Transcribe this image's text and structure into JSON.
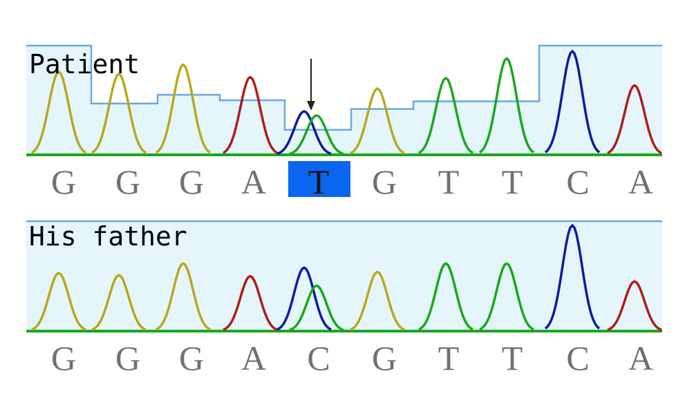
{
  "panels": [
    {
      "id": "patient",
      "label": "Patient",
      "bases": [
        "G",
        "G",
        "G",
        "A",
        "T",
        "G",
        "T",
        "T",
        "C",
        "A"
      ],
      "highlight_index": 4,
      "arrow_index": 4,
      "peaks": [
        {
          "base": "G",
          "height": 0.8
        },
        {
          "base": "G",
          "height": 0.78
        },
        {
          "base": "G",
          "height": 0.87
        },
        {
          "base": "A",
          "height": 0.75
        },
        {
          "base": "C",
          "height": 0.42
        },
        {
          "base": "T",
          "height": 0.38
        },
        {
          "base": "G",
          "height": 0.64
        },
        {
          "base": "T",
          "height": 0.74
        },
        {
          "base": "T",
          "height": 0.93
        },
        {
          "base": "C",
          "height": 1.0
        },
        {
          "base": "A",
          "height": 0.67
        }
      ],
      "quality_levels": [
        1.0,
        0.47,
        0.55,
        0.5,
        0.23,
        0.42,
        0.49,
        0.49,
        1.0,
        1.0
      ]
    },
    {
      "id": "father",
      "label": "His father",
      "bases": [
        "G",
        "G",
        "G",
        "A",
        "C",
        "G",
        "T",
        "T",
        "C",
        "A"
      ],
      "highlight_index": null,
      "arrow_index": null,
      "peaks": [
        {
          "base": "G",
          "height": 0.55
        },
        {
          "base": "G",
          "height": 0.53
        },
        {
          "base": "G",
          "height": 0.64
        },
        {
          "base": "A",
          "height": 0.52
        },
        {
          "base": "C",
          "height": 0.6
        },
        {
          "base": "T",
          "height": 0.43
        },
        {
          "base": "G",
          "height": 0.56
        },
        {
          "base": "T",
          "height": 0.64
        },
        {
          "base": "T",
          "height": 0.64
        },
        {
          "base": "C",
          "height": 1.0
        },
        {
          "base": "A",
          "height": 0.47
        }
      ],
      "quality_levels": [
        1.0,
        1.0,
        1.0,
        1.0,
        1.0,
        1.0,
        1.0,
        1.0,
        1.0,
        1.0
      ]
    }
  ],
  "colors": {
    "A": "#b01c1c",
    "C": "#0d1ba3",
    "G": "#b8a820",
    "T": "#1aa81a",
    "baseline": "#1aa81a",
    "quality_fill": "#e4f6fb",
    "quality_line": "#6aa8e0",
    "highlight": "#0a66f0"
  }
}
